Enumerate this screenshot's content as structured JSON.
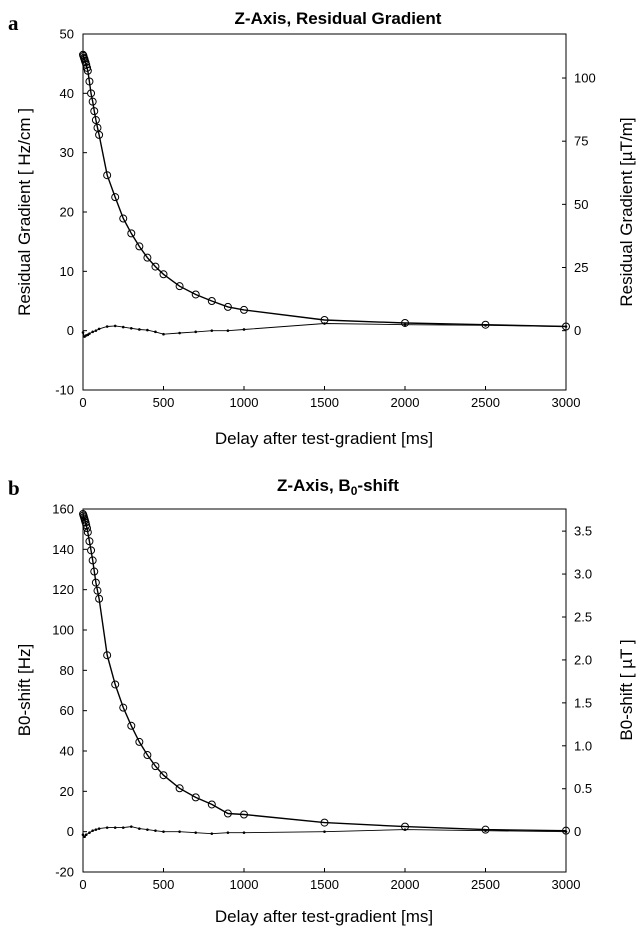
{
  "chart_data": [
    {
      "panel_label": "a",
      "type": "line",
      "title": "Z-Axis, Residual Gradient",
      "title_sub": "",
      "title_suffix": "",
      "xlabel": "Delay after test-gradient [ms]",
      "ylabel_left": "Residual Gradient [ Hz/cm ]",
      "ylabel_right": "Residual Gradient [µT/m]",
      "xlim": [
        0,
        3000
      ],
      "ylim": [
        -10,
        50
      ],
      "x_ticks": [
        "0",
        "500",
        "1000",
        "1500",
        "2000",
        "2500",
        "3000"
      ],
      "y_ticks": [
        "-10",
        "0",
        "10",
        "20",
        "30",
        "40",
        "50"
      ],
      "right_ticks": [
        "0",
        "25",
        "50",
        "75",
        "100"
      ],
      "right_tick_values": [
        0,
        25,
        50,
        75,
        100
      ],
      "right_to_left_factor": 0.4258,
      "grid": false,
      "series": [
        {
          "marker": "circle",
          "x": [
            0,
            3,
            6,
            9,
            12,
            16,
            20,
            25,
            30,
            40,
            50,
            60,
            70,
            80,
            90,
            100,
            150,
            200,
            250,
            300,
            350,
            400,
            450,
            500,
            600,
            700,
            800,
            900,
            1000,
            1500,
            2000,
            2500,
            3000
          ],
          "y": [
            46.5,
            46.3,
            46.0,
            45.8,
            45.5,
            45.2,
            44.8,
            44.3,
            43.8,
            42.0,
            40.0,
            38.6,
            37.0,
            35.5,
            34.2,
            33.0,
            26.2,
            22.5,
            18.9,
            16.4,
            14.2,
            12.3,
            10.8,
            9.5,
            7.5,
            6.1,
            5.0,
            4.0,
            3.5,
            1.8,
            1.3,
            1.0,
            0.7
          ]
        },
        {
          "marker": "dot",
          "x": [
            0,
            10,
            20,
            30,
            40,
            60,
            80,
            100,
            150,
            200,
            250,
            300,
            350,
            400,
            450,
            500,
            600,
            700,
            800,
            900,
            1000,
            1500,
            2000,
            2500,
            3000
          ],
          "y": [
            -0.3,
            -1.0,
            -0.8,
            -0.7,
            -0.5,
            -0.2,
            0.0,
            0.3,
            0.7,
            0.8,
            0.6,
            0.4,
            0.2,
            0.1,
            -0.2,
            -0.6,
            -0.4,
            -0.2,
            0.0,
            0.0,
            0.2,
            1.2,
            1.0,
            0.9,
            0.7
          ]
        }
      ]
    },
    {
      "panel_label": "b",
      "type": "line",
      "title": "Z-Axis, B",
      "title_sub": "0",
      "title_suffix": "-shift",
      "xlabel": "Delay after test-gradient [ms]",
      "ylabel_left": "B0-shift [Hz]",
      "ylabel_right": "B0-shift [ µT ]",
      "xlim": [
        0,
        3000
      ],
      "ylim": [
        -20,
        160
      ],
      "x_ticks": [
        "0",
        "500",
        "1000",
        "1500",
        "2000",
        "2500",
        "3000"
      ],
      "y_ticks": [
        "-20",
        "0",
        "20",
        "40",
        "60",
        "80",
        "100",
        "120",
        "140",
        "160"
      ],
      "right_ticks": [
        "0",
        "0.5",
        "1.0",
        "1.5",
        "2.0",
        "2.5",
        "3.0",
        "3.5"
      ],
      "right_tick_values": [
        0,
        0.5,
        1.0,
        1.5,
        2.0,
        2.5,
        3.0,
        3.5
      ],
      "right_to_left_factor": 42.58,
      "grid": false,
      "series": [
        {
          "marker": "circle",
          "x": [
            0,
            3,
            6,
            9,
            12,
            16,
            20,
            25,
            30,
            40,
            50,
            60,
            70,
            80,
            90,
            100,
            150,
            200,
            250,
            300,
            350,
            400,
            450,
            500,
            600,
            700,
            800,
            900,
            1000,
            1500,
            2000,
            2500,
            3000
          ],
          "y": [
            157.5,
            156.8,
            156.0,
            155.2,
            154.3,
            153.3,
            152.0,
            150.5,
            148.5,
            144.0,
            139.5,
            134.5,
            129.0,
            123.5,
            119.5,
            115.5,
            87.5,
            73.0,
            61.5,
            52.5,
            44.5,
            38.0,
            32.5,
            28.0,
            21.5,
            17.0,
            13.5,
            9.0,
            8.5,
            4.5,
            2.5,
            1.0,
            0.5
          ]
        },
        {
          "marker": "dot",
          "x": [
            0,
            10,
            20,
            40,
            60,
            80,
            100,
            150,
            200,
            250,
            300,
            350,
            400,
            450,
            500,
            600,
            700,
            800,
            900,
            1000,
            1500,
            2000,
            2500,
            3000
          ],
          "y": [
            -1.5,
            -2.5,
            -1.5,
            -0.5,
            0.5,
            1.0,
            1.5,
            2.0,
            2.0,
            2.0,
            2.5,
            1.5,
            1.0,
            0.5,
            0.0,
            0.0,
            -0.5,
            -1.0,
            -0.5,
            -0.5,
            0.0,
            1.0,
            0.5,
            0.0
          ]
        }
      ]
    }
  ]
}
